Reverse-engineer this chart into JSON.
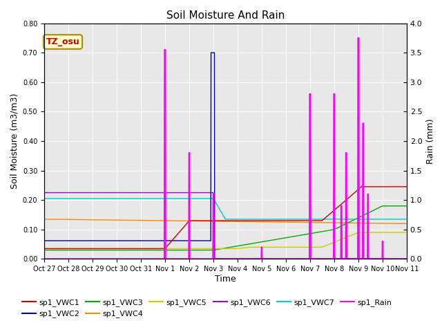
{
  "title": "Soil Moisture And Rain",
  "xlabel": "Time",
  "ylabel_left": "Soil Moisture (m3/m3)",
  "ylabel_right": "Rain (mm)",
  "ylim_left": [
    0.0,
    0.8
  ],
  "ylim_right": [
    0.0,
    4.0
  ],
  "yticks_left": [
    0.0,
    0.1,
    0.2,
    0.3,
    0.4,
    0.5,
    0.6,
    0.7,
    0.8
  ],
  "yticks_right": [
    0.0,
    0.5,
    1.0,
    1.5,
    2.0,
    2.5,
    3.0,
    3.5,
    4.0
  ],
  "background_color": "#e8e8e8",
  "annotation_text": "TZ_osu",
  "annotation_bg": "#ffffcc",
  "annotation_fg": "#cc0000",
  "annotation_border": "#aa8800",
  "colors": {
    "sp1_VWC1": "#cc0000",
    "sp1_VWC2": "#000099",
    "sp1_VWC3": "#00aa00",
    "sp1_VWC4": "#ff8800",
    "sp1_VWC5": "#cccc00",
    "sp1_VWC6": "#9900cc",
    "sp1_VWC7": "#00cccc",
    "sp1_Rain": "#ff00ff"
  },
  "xtick_labels": [
    "Oct 27",
    "Oct 28",
    "Oct 29",
    "Oct 30",
    "Oct 31",
    "Nov 1",
    "Nov 2",
    "Nov 3",
    "Nov 4",
    "Nov 5",
    "Nov 6",
    "Nov 7",
    "Nov 8",
    "Nov 9",
    "Nov 10",
    "Nov 11"
  ],
  "grid_color": "#ffffff",
  "lw": 1.0,
  "rain_scale": 5.0,
  "n_points": 1500
}
